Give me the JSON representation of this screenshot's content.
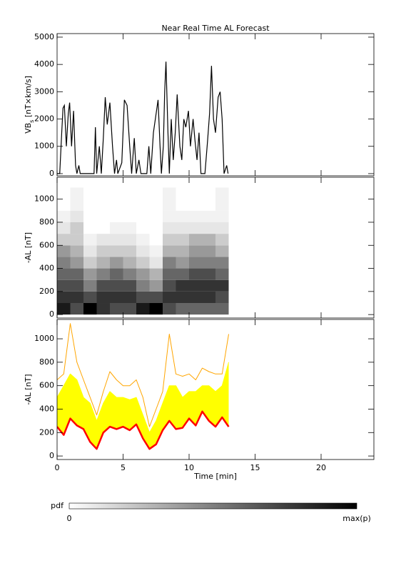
{
  "chart_data": [
    {
      "type": "line",
      "title": "Near Real Time AL Forecast",
      "ylabel": [
        "VB",
        "s",
        " [nT×km/s]"
      ],
      "xlim": [
        0,
        24
      ],
      "xticks": [
        0,
        5,
        10,
        15,
        20
      ],
      "ylim": [
        -80,
        5130
      ],
      "yticks": [
        0,
        1000,
        2000,
        3000,
        4000,
        5000
      ],
      "color": "#000000",
      "x": [
        0,
        0.2,
        0.35,
        0.45,
        0.55,
        0.7,
        0.85,
        0.95,
        1.1,
        1.25,
        1.4,
        1.5,
        1.65,
        1.75,
        2.8,
        2.9,
        3.0,
        3.2,
        3.35,
        3.5,
        3.65,
        3.8,
        4.0,
        4.2,
        4.35,
        4.5,
        4.6,
        4.9,
        5.1,
        5.3,
        5.5,
        5.65,
        5.85,
        6.0,
        6.2,
        6.35,
        6.8,
        6.95,
        7.1,
        7.3,
        7.5,
        7.65,
        7.8,
        7.9,
        8.05,
        8.15,
        8.25,
        8.4,
        8.5,
        8.65,
        8.8,
        8.95,
        9.1,
        9.3,
        9.45,
        9.6,
        9.75,
        9.95,
        10.1,
        10.3,
        10.45,
        10.6,
        10.75,
        10.9,
        11.2,
        11.4,
        11.55,
        11.7,
        11.85,
        12.0,
        12.2,
        12.35,
        12.5,
        12.65,
        12.85,
        12.95
      ],
      "values": [
        0,
        0,
        1500,
        2400,
        2500,
        1000,
        2200,
        2600,
        1000,
        2300,
        300,
        0,
        300,
        0,
        0,
        1700,
        0,
        1000,
        0,
        1300,
        2800,
        1800,
        2600,
        1000,
        0,
        500,
        0,
        400,
        2700,
        2500,
        1000,
        0,
        1300,
        0,
        500,
        0,
        0,
        1000,
        0,
        1500,
        2200,
        2700,
        1000,
        0,
        1000,
        3000,
        4100,
        1500,
        0,
        2000,
        500,
        1500,
        2900,
        1000,
        500,
        2000,
        1700,
        2300,
        1000,
        2000,
        1200,
        500,
        1500,
        0,
        0,
        1200,
        2200,
        3950,
        2000,
        1500,
        2800,
        3000,
        2000,
        0,
        300,
        0
      ]
    },
    {
      "type": "heatmap",
      "ylabel": "-AL [nT]",
      "xlim": [
        0,
        24
      ],
      "xticks": [
        0,
        5,
        10,
        15,
        20
      ],
      "ylim": [
        -30,
        1190
      ],
      "yticks": [
        0,
        200,
        400,
        600,
        800,
        1000
      ],
      "x_bins": [
        0,
        1,
        2,
        3,
        4,
        5,
        6,
        7,
        8,
        9,
        10,
        11,
        12,
        13
      ],
      "y_bins": [
        0,
        100,
        200,
        300,
        400,
        500,
        600,
        700,
        800,
        900,
        1000,
        1100
      ],
      "z": [
        [
          0.9,
          0.8,
          0.7,
          0.6,
          0.5,
          0.4,
          0.2,
          0.1,
          0.05,
          0,
          0
        ],
        [
          0.7,
          0.8,
          0.7,
          0.6,
          0.4,
          0.3,
          0.2,
          0.2,
          0.1,
          0.05,
          0.05
        ],
        [
          1.0,
          0.7,
          0.5,
          0.4,
          0.2,
          0.1,
          0.05,
          0,
          0,
          0,
          0
        ],
        [
          0.8,
          0.8,
          0.7,
          0.5,
          0.3,
          0.2,
          0.1,
          0,
          0,
          0,
          0
        ],
        [
          0.7,
          0.8,
          0.7,
          0.6,
          0.4,
          0.2,
          0.1,
          0.05,
          0,
          0,
          0
        ],
        [
          0.7,
          0.8,
          0.7,
          0.5,
          0.3,
          0.2,
          0.1,
          0.05,
          0,
          0,
          0
        ],
        [
          0.9,
          0.7,
          0.5,
          0.4,
          0.2,
          0.1,
          0.05,
          0,
          0,
          0,
          0
        ],
        [
          1.0,
          0.7,
          0.4,
          0.3,
          0.1,
          0.05,
          0,
          0,
          0,
          0,
          0
        ],
        [
          0.7,
          0.8,
          0.7,
          0.6,
          0.5,
          0.3,
          0.2,
          0.1,
          0.05,
          0.05,
          0.05
        ],
        [
          0.6,
          0.8,
          0.8,
          0.6,
          0.4,
          0.3,
          0.2,
          0.1,
          0.05,
          0,
          0
        ],
        [
          0.6,
          0.8,
          0.8,
          0.7,
          0.5,
          0.4,
          0.3,
          0.1,
          0.05,
          0,
          0
        ],
        [
          0.6,
          0.8,
          0.8,
          0.7,
          0.5,
          0.4,
          0.3,
          0.1,
          0.05,
          0,
          0
        ],
        [
          0.6,
          0.7,
          0.8,
          0.6,
          0.5,
          0.3,
          0.2,
          0.1,
          0.05,
          0.05,
          0.05
        ]
      ],
      "colorbar": {
        "label": "pdf",
        "min_label": "0",
        "max_label": "max(p)"
      }
    },
    {
      "type": "band",
      "ylabel": "-AL [nT]",
      "xlabel": "Time [min]",
      "xlim": [
        0,
        24
      ],
      "xticks": [
        0,
        5,
        10,
        15,
        20
      ],
      "ylim": [
        -30,
        1165
      ],
      "yticks": [
        0,
        200,
        400,
        600,
        800,
        1000
      ],
      "band": [
        1,
        2
      ],
      "x": [
        0,
        0.5,
        1,
        1.5,
        2,
        2.5,
        3,
        3.5,
        4,
        4.5,
        5,
        5.5,
        6,
        6.5,
        7,
        7.5,
        8,
        8.5,
        9,
        9.5,
        10,
        10.5,
        11,
        11.5,
        12,
        12.5,
        13
      ],
      "series": [
        {
          "color": "#ffa500",
          "width": 1,
          "values": [
            650,
            700,
            1130,
            800,
            650,
            500,
            350,
            550,
            720,
            650,
            600,
            600,
            650,
            500,
            250,
            400,
            550,
            1040,
            700,
            680,
            700,
            650,
            750,
            720,
            700,
            700,
            1040
          ]
        },
        {
          "color": "#ffff00",
          "width": 1,
          "values": [
            500,
            600,
            700,
            650,
            500,
            450,
            300,
            450,
            550,
            500,
            500,
            480,
            500,
            350,
            200,
            300,
            450,
            600,
            600,
            500,
            550,
            550,
            600,
            600,
            550,
            600,
            800
          ]
        },
        {
          "color": "#ff0000",
          "width": 2.5,
          "values": [
            250,
            180,
            320,
            260,
            230,
            120,
            60,
            200,
            250,
            230,
            250,
            220,
            270,
            150,
            60,
            100,
            220,
            300,
            230,
            240,
            320,
            260,
            380,
            300,
            250,
            330,
            250
          ]
        }
      ]
    }
  ]
}
